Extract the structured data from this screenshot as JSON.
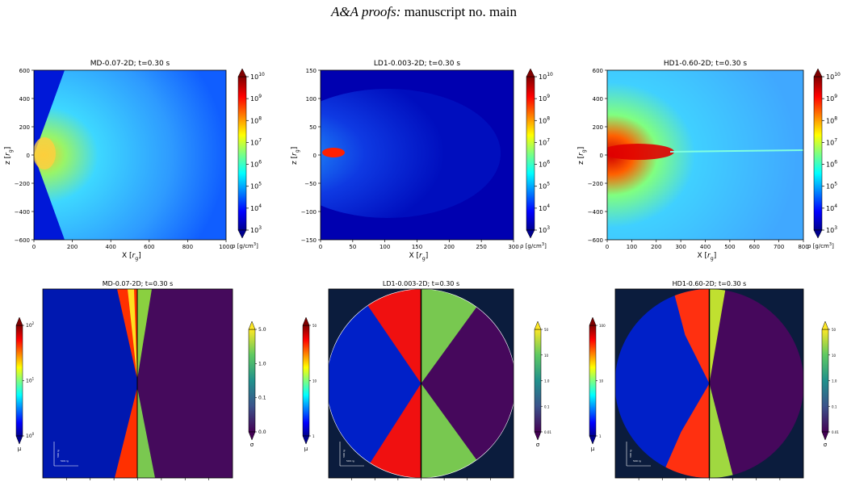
{
  "header": {
    "journal": "A&A proofs:",
    "rest": "manuscript no. main"
  },
  "top_panels": [
    {
      "title": "MD-0.07-2D;  t=0.30 s",
      "yticks": [
        "600",
        "400",
        "200",
        "0",
        "−200",
        "−400",
        "−600"
      ],
      "xticks": [
        "0",
        "200",
        "400",
        "600",
        "800",
        "1000"
      ],
      "xlabel": {
        "pre": "X [",
        "var": "r",
        "sub": "g",
        "post": "]"
      },
      "ylabel": {
        "pre": "z [",
        "var": "r",
        "sub": "g",
        "post": "]"
      },
      "colorbar": {
        "base": "10",
        "exponents": [
          "10",
          "9",
          "8",
          "7",
          "6",
          "5",
          "4",
          "3"
        ],
        "label": {
          "pre": "ρ [g/cm",
          "sup": "3",
          "post": "]"
        }
      }
    },
    {
      "title": "LD1-0.003-2D;  t=0.30 s",
      "yticks": [
        "150",
        "100",
        "50",
        "0",
        "−50",
        "−100",
        "−150"
      ],
      "xticks": [
        "0",
        "50",
        "100",
        "150",
        "200",
        "250",
        "300"
      ],
      "xlabel": {
        "pre": "X [",
        "var": "r",
        "sub": "g",
        "post": "]"
      },
      "ylabel": {
        "pre": "z [",
        "var": "r",
        "sub": "g",
        "post": "]"
      },
      "colorbar": {
        "base": "10",
        "exponents": [
          "10",
          "9",
          "8",
          "7",
          "6",
          "5",
          "4",
          "3"
        ],
        "label": {
          "pre": "ρ [g/cm",
          "sup": "3",
          "post": "]"
        }
      }
    },
    {
      "title": "HD1-0.60-2D;  t=0.30 s",
      "yticks": [
        "600",
        "400",
        "200",
        "0",
        "−200",
        "−400",
        "−600"
      ],
      "xticks": [
        "0",
        "100",
        "200",
        "300",
        "400",
        "500",
        "600",
        "700",
        "800"
      ],
      "xlabel": {
        "pre": "X [",
        "var": "r",
        "sub": "g",
        "post": "]"
      },
      "ylabel": {
        "pre": "z [",
        "var": "r",
        "sub": "g",
        "post": "]"
      },
      "colorbar": {
        "base": "10",
        "exponents": [
          "10",
          "9",
          "8",
          "7",
          "6",
          "5",
          "4",
          "3"
        ],
        "label": {
          "pre": "ρ [g/cm",
          "sup": "3",
          "post": "]"
        }
      }
    }
  ],
  "bottom_panels": [
    {
      "title": "MD-0.07-2D; t=0.30 s",
      "mu": {
        "ticks": [
          {
            "base": "10",
            "exp": "2"
          },
          {
            "base": "10",
            "exp": "1"
          },
          {
            "base": "10",
            "exp": "0"
          }
        ],
        "label": "μ"
      },
      "sigma": {
        "ticks": [
          "5.0",
          "1.0",
          "0.1",
          "0.0"
        ],
        "label": "σ"
      },
      "scale": {
        "vertical": "500 rg",
        "horizontal": "500 rg"
      }
    },
    {
      "title": "LD1-0.003-2D; t=0.30 s",
      "mu": {
        "ticks": [
          "50",
          "10",
          "1"
        ],
        "label": "μ"
      },
      "sigma": {
        "ticks": [
          "50",
          "10",
          "1.0",
          "0.1",
          "0.01"
        ],
        "label": "σ"
      },
      "scale": {
        "vertical": "500 rg",
        "horizontal": "500 rg"
      }
    },
    {
      "title": "HD1-0.60-2D; t=0.30 s",
      "mu": {
        "ticks": [
          "100",
          "10",
          "1"
        ],
        "label": "μ"
      },
      "sigma": {
        "ticks": [
          "50",
          "10",
          "1.0",
          "0.1",
          "0.01"
        ],
        "label": "σ"
      },
      "scale": {
        "vertical": "500 rg",
        "horizontal": "500 rg"
      }
    }
  ]
}
